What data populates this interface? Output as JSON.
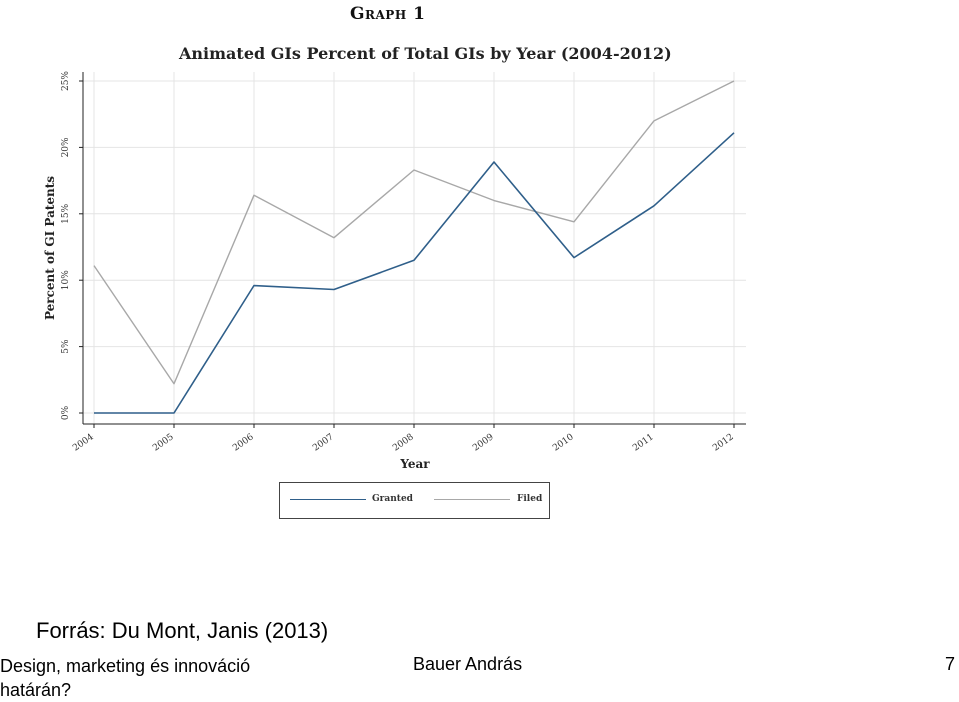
{
  "graph_heading": "Graph 1",
  "chart_data": {
    "type": "line",
    "title": "Animated GIs Percent of Total GIs by Year (2004-2012)",
    "xlabel": "Year",
    "ylabel": "Percent of GI Patents",
    "x": [
      "2004",
      "2005",
      "2006",
      "2007",
      "2008",
      "2009",
      "2010",
      "2011",
      "2012"
    ],
    "ylim": [
      0,
      25
    ],
    "yticks": [
      0,
      5,
      10,
      15,
      20,
      25
    ],
    "ytick_labels": [
      "0%",
      "5%",
      "10%",
      "15%",
      "20%",
      "25%"
    ],
    "grid": true,
    "legend_position": "bottom",
    "series": [
      {
        "name": "Granted",
        "color": "#2f5f8a",
        "values": [
          0,
          0,
          9.6,
          9.3,
          11.5,
          18.9,
          11.7,
          15.6,
          21.1
        ]
      },
      {
        "name": "Filed",
        "color": "#a8a8a8",
        "values": [
          11.1,
          2.2,
          16.4,
          13.2,
          18.3,
          16.0,
          14.4,
          22.0,
          25.0
        ]
      }
    ]
  },
  "footer": {
    "source": "Forrás: Du Mont, Janis (2013)",
    "course_title": "Design, marketing és innováció határán?",
    "author": "Bauer András",
    "page_number": "7"
  }
}
